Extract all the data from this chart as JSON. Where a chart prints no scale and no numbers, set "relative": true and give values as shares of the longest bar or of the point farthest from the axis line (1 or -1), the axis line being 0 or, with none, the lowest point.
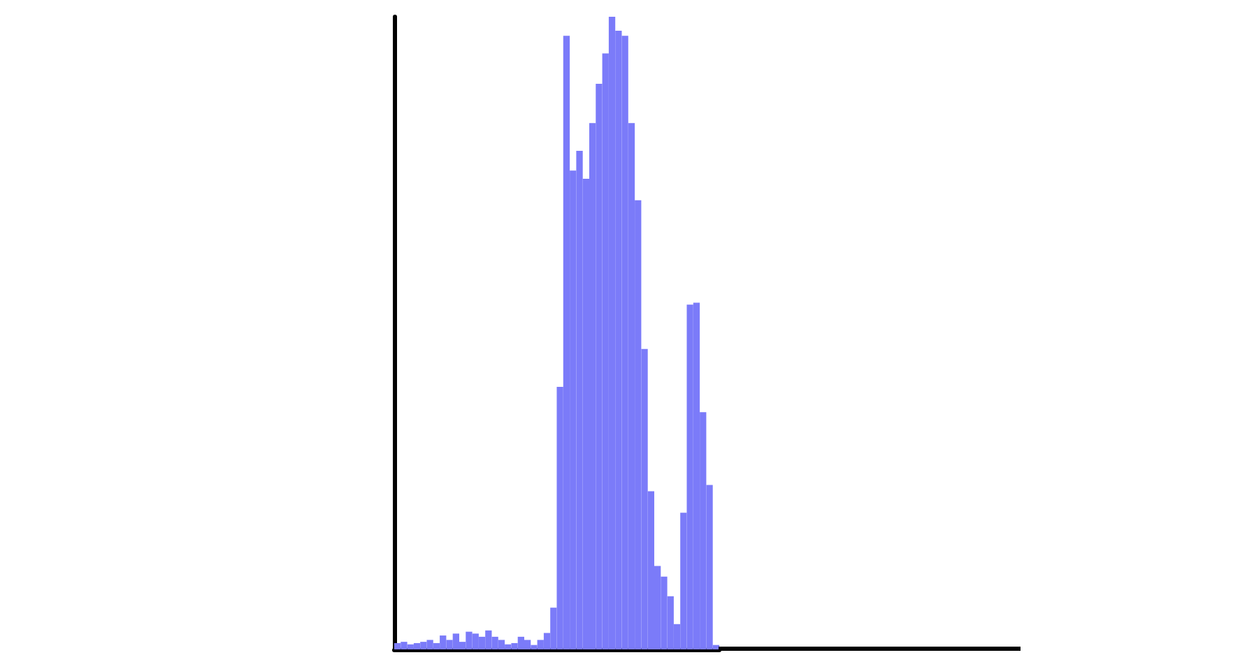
{
  "chart_data": {
    "type": "bar",
    "relative": true,
    "color": "#7b7bf9",
    "grid": false,
    "categories": [
      null,
      null,
      null,
      null,
      null,
      null,
      null,
      null,
      null,
      null,
      null,
      null,
      null,
      null,
      null,
      null,
      null,
      null,
      null,
      null,
      null,
      null,
      null,
      null,
      null,
      null,
      null,
      null,
      null,
      null,
      null,
      null,
      null,
      null,
      null,
      null,
      null,
      null,
      null,
      null,
      null,
      null,
      null,
      null,
      null,
      null,
      null,
      null,
      null,
      null
    ],
    "values": [
      0.01,
      0.012,
      0.008,
      0.01,
      0.012,
      0.015,
      0.01,
      0.022,
      0.015,
      0.025,
      0.012,
      0.028,
      0.025,
      0.02,
      0.03,
      0.02,
      0.015,
      0.008,
      0.01,
      0.02,
      0.015,
      0.007,
      0.015,
      0.026,
      0.066,
      0.415,
      0.97,
      0.757,
      0.788,
      0.744,
      0.832,
      0.894,
      0.942,
      1,
      0.978,
      0.97,
      0.832,
      0.71,
      0.475,
      0.25,
      0.132,
      0.115,
      0.084,
      0.04,
      0.216,
      0.545,
      0.548,
      0.375,
      0.26,
      0.007
    ]
  }
}
